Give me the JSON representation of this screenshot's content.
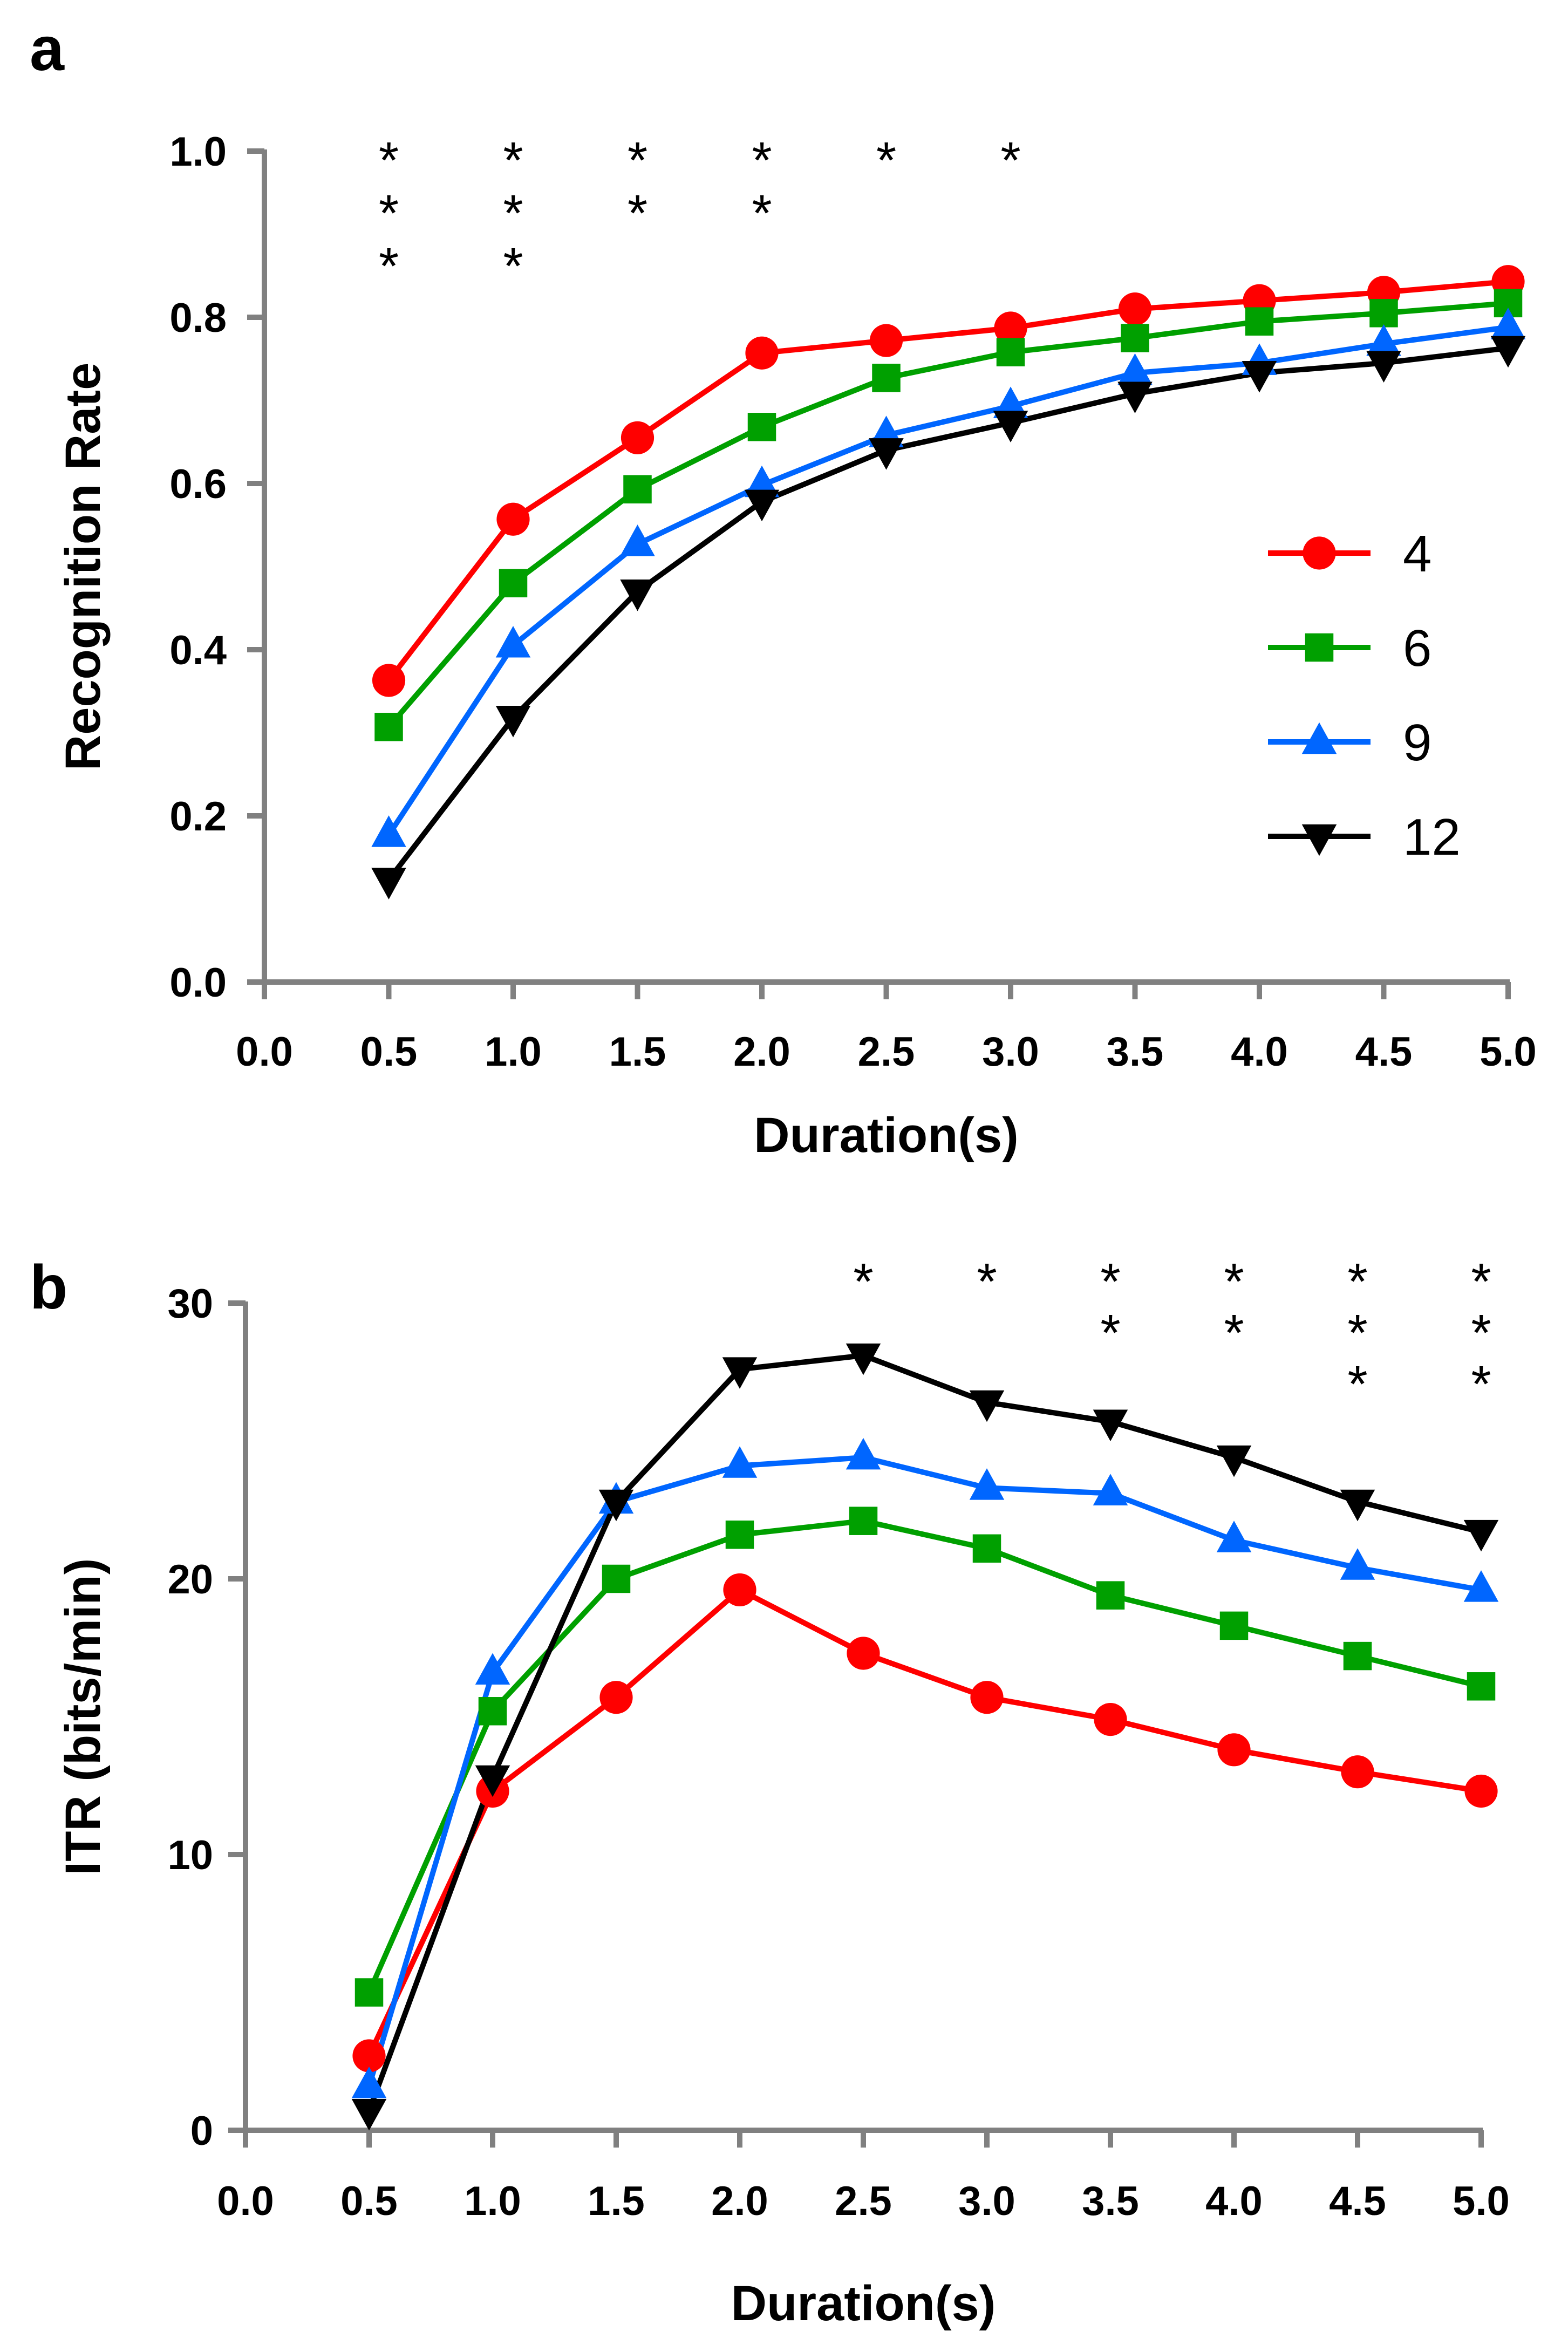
{
  "chart_data": [
    {
      "id": "a",
      "panel_label": "a",
      "type": "line",
      "xlabel": "Duration(s)",
      "ylabel": "Recognition Rate",
      "xlim": [
        0.0,
        5.0
      ],
      "ylim": [
        0.0,
        1.0
      ],
      "x_ticks": [
        "0.0",
        "0.5",
        "1.0",
        "1.5",
        "2.0",
        "2.5",
        "3.0",
        "3.5",
        "4.0",
        "4.5",
        "5.0"
      ],
      "y_ticks": [
        "0.0",
        "0.2",
        "0.4",
        "0.6",
        "0.8",
        "1.0"
      ],
      "x": [
        0.5,
        1.0,
        1.5,
        2.0,
        2.5,
        3.0,
        3.5,
        4.0,
        4.5,
        5.0
      ],
      "series": [
        {
          "name": "4",
          "color": "#ff0000",
          "marker": "circle",
          "values": [
            0.363,
            0.557,
            0.655,
            0.757,
            0.772,
            0.787,
            0.81,
            0.82,
            0.83,
            0.843
          ]
        },
        {
          "name": "6",
          "color": "#00a000",
          "marker": "square",
          "values": [
            0.307,
            0.48,
            0.593,
            0.668,
            0.727,
            0.758,
            0.775,
            0.795,
            0.805,
            0.817
          ]
        },
        {
          "name": "9",
          "color": "#0066ff",
          "marker": "triangle-up",
          "values": [
            0.177,
            0.405,
            0.527,
            0.598,
            0.658,
            0.693,
            0.733,
            0.745,
            0.768,
            0.788
          ]
        },
        {
          "name": "12",
          "color": "#000000",
          "marker": "triangle-down",
          "values": [
            0.123,
            0.318,
            0.47,
            0.578,
            0.64,
            0.673,
            0.708,
            0.733,
            0.745,
            0.763
          ]
        }
      ],
      "legend": {
        "position": "right",
        "entries": [
          "4",
          "6",
          "9",
          "12"
        ]
      },
      "significance": [
        {
          "x": 0.5,
          "label": "***"
        },
        {
          "x": 1.0,
          "label": "***"
        },
        {
          "x": 1.5,
          "label": "**"
        },
        {
          "x": 2.0,
          "label": "**"
        },
        {
          "x": 2.5,
          "label": "*"
        },
        {
          "x": 3.0,
          "label": "*"
        }
      ],
      "significance_placement": "top"
    },
    {
      "id": "b",
      "panel_label": "b",
      "type": "line",
      "xlabel": "Duration(s)",
      "ylabel": "ITR (bits/min)",
      "xlim": [
        0.0,
        5.0
      ],
      "ylim": [
        0,
        30
      ],
      "x_ticks": [
        "0.0",
        "0.5",
        "1.0",
        "1.5",
        "2.0",
        "2.5",
        "3.0",
        "3.5",
        "4.0",
        "4.5",
        "5.0"
      ],
      "y_ticks": [
        "0",
        "10",
        "20",
        "30"
      ],
      "x": [
        0.5,
        1.0,
        1.5,
        2.0,
        2.5,
        3.0,
        3.5,
        4.0,
        4.5,
        5.0
      ],
      "series": [
        {
          "name": "4",
          "color": "#ff0000",
          "marker": "circle",
          "values": [
            2.7,
            12.3,
            15.7,
            19.6,
            17.3,
            15.7,
            14.9,
            13.8,
            13.0,
            12.3
          ]
        },
        {
          "name": "6",
          "color": "#00a000",
          "marker": "square",
          "values": [
            5.0,
            15.2,
            20.0,
            21.6,
            22.1,
            21.1,
            19.4,
            18.3,
            17.2,
            16.1
          ]
        },
        {
          "name": "9",
          "color": "#0066ff",
          "marker": "triangle-up",
          "values": [
            1.6,
            16.6,
            22.8,
            24.1,
            24.4,
            23.3,
            23.1,
            21.4,
            20.4,
            19.6
          ]
        },
        {
          "name": "12",
          "color": "#000000",
          "marker": "triangle-down",
          "values": [
            0.7,
            12.8,
            22.8,
            27.6,
            28.1,
            26.4,
            25.7,
            24.4,
            22.8,
            21.7
          ]
        }
      ],
      "significance": [
        {
          "x": 2.5,
          "label": "*"
        },
        {
          "x": 3.0,
          "label": "*"
        },
        {
          "x": 3.5,
          "label": "**"
        },
        {
          "x": 4.0,
          "label": "**"
        },
        {
          "x": 4.5,
          "label": "***"
        },
        {
          "x": 5.0,
          "label": "***"
        }
      ],
      "significance_placement": "top"
    }
  ]
}
